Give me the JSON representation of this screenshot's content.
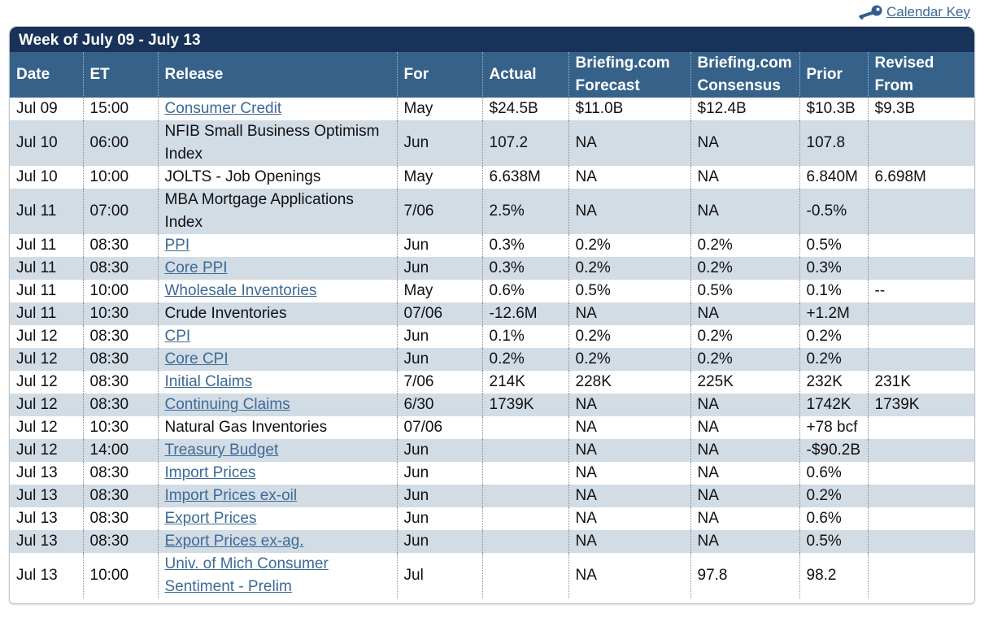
{
  "calendar_key": {
    "label": "Calendar Key",
    "icon": "key-icon"
  },
  "week_title": "Week of July 09 - July 13",
  "columns": [
    {
      "line1": "Date",
      "line2": ""
    },
    {
      "line1": "ET",
      "line2": ""
    },
    {
      "line1": "Release",
      "line2": ""
    },
    {
      "line1": "For",
      "line2": ""
    },
    {
      "line1": "Actual",
      "line2": ""
    },
    {
      "line1": "Briefing.com",
      "line2": "Forecast"
    },
    {
      "line1": "Briefing.com",
      "line2": "Consensus"
    },
    {
      "line1": "Prior",
      "line2": ""
    },
    {
      "line1": "Revised",
      "line2": "From"
    }
  ],
  "rows": [
    {
      "date": "Jul 09",
      "et": "15:00",
      "release": "Consumer Credit",
      "link": true,
      "for": "May",
      "actual": "$24.5B",
      "forecast": "$11.0B",
      "consensus": "$12.4B",
      "prior": "$10.3B",
      "revised": "$9.3B"
    },
    {
      "date": "Jul 10",
      "et": "06:00",
      "release": "NFIB Small Business Optimism Index",
      "link": false,
      "for": "Jun",
      "actual": "107.2",
      "forecast": "NA",
      "consensus": "NA",
      "prior": "107.8",
      "revised": "",
      "tall": true
    },
    {
      "date": "Jul 10",
      "et": "10:00",
      "release": "JOLTS - Job Openings",
      "link": false,
      "for": "May",
      "actual": "6.638M",
      "forecast": "NA",
      "consensus": "NA",
      "prior": "6.840M",
      "revised": "6.698M"
    },
    {
      "date": "Jul 11",
      "et": "07:00",
      "release": "MBA Mortgage Applications Index",
      "link": false,
      "for": "7/06",
      "actual": "2.5%",
      "forecast": "NA",
      "consensus": "NA",
      "prior": "-0.5%",
      "revised": "",
      "tall": true
    },
    {
      "date": "Jul 11",
      "et": "08:30",
      "release": "PPI",
      "link": true,
      "for": "Jun",
      "actual": "0.3%",
      "forecast": "0.2%",
      "consensus": "0.2%",
      "prior": "0.5%",
      "revised": ""
    },
    {
      "date": "Jul 11",
      "et": "08:30",
      "release": "Core PPI",
      "link": true,
      "for": "Jun",
      "actual": "0.3%",
      "forecast": "0.2%",
      "consensus": "0.2%",
      "prior": "0.3%",
      "revised": ""
    },
    {
      "date": "Jul 11",
      "et": "10:00",
      "release": "Wholesale Inventories",
      "link": true,
      "for": "May",
      "actual": "0.6%",
      "forecast": "0.5%",
      "consensus": "0.5%",
      "prior": "0.1%",
      "revised": "--"
    },
    {
      "date": "Jul 11",
      "et": "10:30",
      "release": "Crude Inventories",
      "link": false,
      "for": "07/06",
      "actual": "-12.6M",
      "forecast": "NA",
      "consensus": "NA",
      "prior": "+1.2M",
      "revised": ""
    },
    {
      "date": "Jul 12",
      "et": "08:30",
      "release": "CPI",
      "link": true,
      "for": "Jun",
      "actual": "0.1%",
      "forecast": "0.2%",
      "consensus": "0.2%",
      "prior": "0.2%",
      "revised": ""
    },
    {
      "date": "Jul 12",
      "et": "08:30",
      "release": "Core CPI",
      "link": true,
      "for": "Jun",
      "actual": "0.2%",
      "forecast": "0.2%",
      "consensus": "0.2%",
      "prior": "0.2%",
      "revised": ""
    },
    {
      "date": "Jul 12",
      "et": "08:30",
      "release": "Initial Claims",
      "link": true,
      "for": "7/06",
      "actual": "214K",
      "forecast": "228K",
      "consensus": "225K",
      "prior": "232K",
      "revised": "231K"
    },
    {
      "date": "Jul 12",
      "et": "08:30",
      "release": "Continuing Claims",
      "link": true,
      "for": "6/30",
      "actual": "1739K",
      "forecast": "NA",
      "consensus": "NA",
      "prior": "1742K",
      "revised": "1739K"
    },
    {
      "date": "Jul 12",
      "et": "10:30",
      "release": "Natural Gas Inventories",
      "link": false,
      "for": "07/06",
      "actual": "",
      "forecast": "NA",
      "consensus": "NA",
      "prior": "+78 bcf",
      "revised": ""
    },
    {
      "date": "Jul 12",
      "et": "14:00",
      "release": "Treasury Budget",
      "link": true,
      "for": "Jun",
      "actual": "",
      "forecast": "NA",
      "consensus": "NA",
      "prior": "-$90.2B",
      "revised": ""
    },
    {
      "date": "Jul 13",
      "et": "08:30",
      "release": "Import Prices",
      "link": true,
      "for": "Jun",
      "actual": "",
      "forecast": "NA",
      "consensus": "NA",
      "prior": "0.6%",
      "revised": ""
    },
    {
      "date": "Jul 13",
      "et": "08:30",
      "release": "Import Prices ex-oil",
      "link": true,
      "for": "Jun",
      "actual": "",
      "forecast": "NA",
      "consensus": "NA",
      "prior": "0.2%",
      "revised": ""
    },
    {
      "date": "Jul 13",
      "et": "08:30",
      "release": "Export Prices",
      "link": true,
      "for": "Jun",
      "actual": "",
      "forecast": "NA",
      "consensus": "NA",
      "prior": "0.6%",
      "revised": ""
    },
    {
      "date": "Jul 13",
      "et": "08:30",
      "release": "Export Prices ex-ag.",
      "link": true,
      "for": "Jun",
      "actual": "",
      "forecast": "NA",
      "consensus": "NA",
      "prior": "0.5%",
      "revised": ""
    },
    {
      "date": "Jul 13",
      "et": "10:00",
      "release": "Univ. of Mich Consumer Sentiment - Prelim",
      "link": true,
      "for": "Jul",
      "actual": "",
      "forecast": "NA",
      "consensus": "97.8",
      "prior": "98.2",
      "revised": "",
      "tall": true
    }
  ],
  "colors": {
    "title_bg": "#183259",
    "header_bg": "#36628a",
    "alt_row_bg": "#d2dce5",
    "link": "#3d6a96"
  }
}
